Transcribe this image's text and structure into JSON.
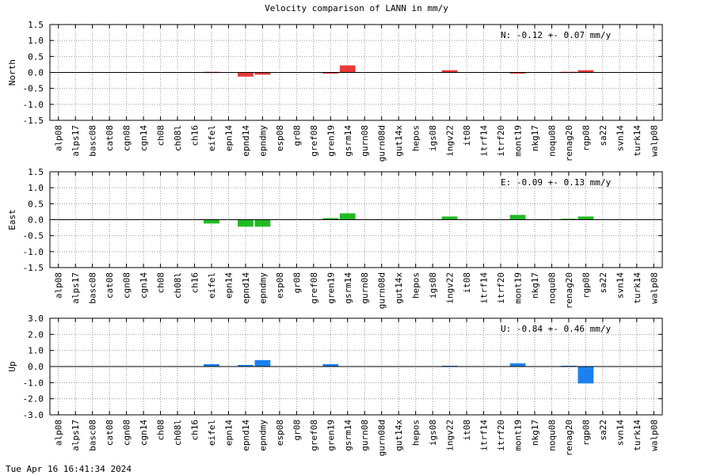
{
  "title": "Velocity comparison of LANN in mm/y",
  "footer": "Tue Apr 16 16:41:34 2024",
  "colors": {
    "north": "#e83a3a",
    "east": "#22bb22",
    "up": "#1a82f0"
  },
  "chart_data": [
    {
      "type": "bar",
      "ylabel": "North",
      "ylim": [
        -1.5,
        1.5
      ],
      "yticks": [
        "1.5",
        "1.0",
        "0.5",
        "0.0",
        "-0.5",
        "-1.0",
        "-1.5"
      ],
      "annotation": "N:  -0.12 +-  0.07 mm/y",
      "color": "#e83a3a",
      "grid": true,
      "categories": [
        "alp08",
        "alps17",
        "basc08",
        "cat08",
        "cgn08",
        "cgn14",
        "ch08",
        "ch08l",
        "ch16",
        "eifel",
        "epn14",
        "epnd14",
        "epndmy",
        "esp08",
        "gr08",
        "gref08",
        "gren19",
        "gsrm14",
        "gurn08",
        "gurn08d",
        "gut14x",
        "hepos",
        "igs08",
        "ingv22",
        "it08",
        "itrf14",
        "itrf20",
        "mont19",
        "nkg17",
        "noqu08",
        "renag20",
        "rgp08",
        "sa22",
        "svn14",
        "turk14",
        "walp08"
      ],
      "values": [
        0,
        0,
        0,
        0,
        0,
        0,
        0,
        0,
        0,
        0.02,
        0,
        -0.13,
        -0.07,
        0,
        0,
        0,
        -0.02,
        0.22,
        0,
        0,
        0,
        0,
        0,
        0.07,
        0,
        0,
        0,
        -0.02,
        0,
        0,
        0.02,
        0.07,
        0,
        0,
        0,
        0
      ]
    },
    {
      "type": "bar",
      "ylabel": "East",
      "ylim": [
        -1.5,
        1.5
      ],
      "yticks": [
        "1.5",
        "1.0",
        "0.5",
        "0.0",
        "-0.5",
        "-1.0",
        "-1.5"
      ],
      "annotation": "E:  -0.09 +-  0.13 mm/y",
      "color": "#22bb22",
      "grid": true,
      "categories": [
        "alp08",
        "alps17",
        "basc08",
        "cat08",
        "cgn08",
        "cgn14",
        "ch08",
        "ch08l",
        "ch16",
        "eifel",
        "epn14",
        "epnd14",
        "epndmy",
        "esp08",
        "gr08",
        "gref08",
        "gren19",
        "gsrm14",
        "gurn08",
        "gurn08d",
        "gut14x",
        "hepos",
        "igs08",
        "ingv22",
        "it08",
        "itrf14",
        "itrf20",
        "mont19",
        "nkg17",
        "noqu08",
        "renag20",
        "rgp08",
        "sa22",
        "svn14",
        "turk14",
        "walp08"
      ],
      "values": [
        0,
        0,
        0,
        0,
        0,
        0,
        0,
        0,
        0,
        -0.12,
        0,
        -0.22,
        -0.22,
        0,
        0,
        0,
        0.05,
        0.2,
        0,
        0,
        0,
        0,
        0,
        0.1,
        0,
        0,
        0,
        0.15,
        0,
        0,
        0.03,
        0.1,
        0,
        0,
        0,
        0
      ]
    },
    {
      "type": "bar",
      "ylabel": "Up",
      "ylim": [
        -3.0,
        3.0
      ],
      "yticks": [
        "3.0",
        "2.0",
        "1.0",
        "0.0",
        "-1.0",
        "-2.0",
        "-3.0"
      ],
      "annotation": "U:  -0.84 +-  0.46 mm/y",
      "color": "#1a82f0",
      "grid": true,
      "categories": [
        "alp08",
        "alps17",
        "basc08",
        "cat08",
        "cgn08",
        "cgn14",
        "ch08",
        "ch08l",
        "ch16",
        "eifel",
        "epn14",
        "epnd14",
        "epndmy",
        "esp08",
        "gr08",
        "gref08",
        "gren19",
        "gsrm14",
        "gurn08",
        "gurn08d",
        "gut14x",
        "hepos",
        "igs08",
        "ingv22",
        "it08",
        "itrf14",
        "itrf20",
        "mont19",
        "nkg17",
        "noqu08",
        "renag20",
        "rgp08",
        "sa22",
        "svn14",
        "turk14",
        "walp08"
      ],
      "values": [
        0,
        0,
        0,
        0,
        0,
        0,
        0,
        0,
        0,
        0.15,
        0,
        0.1,
        0.4,
        0,
        0,
        0,
        0.15,
        0,
        0,
        0,
        0,
        0,
        0,
        0.05,
        0,
        0,
        0,
        0.2,
        0,
        0,
        0.05,
        -1.05,
        0,
        0,
        0,
        0
      ]
    }
  ]
}
